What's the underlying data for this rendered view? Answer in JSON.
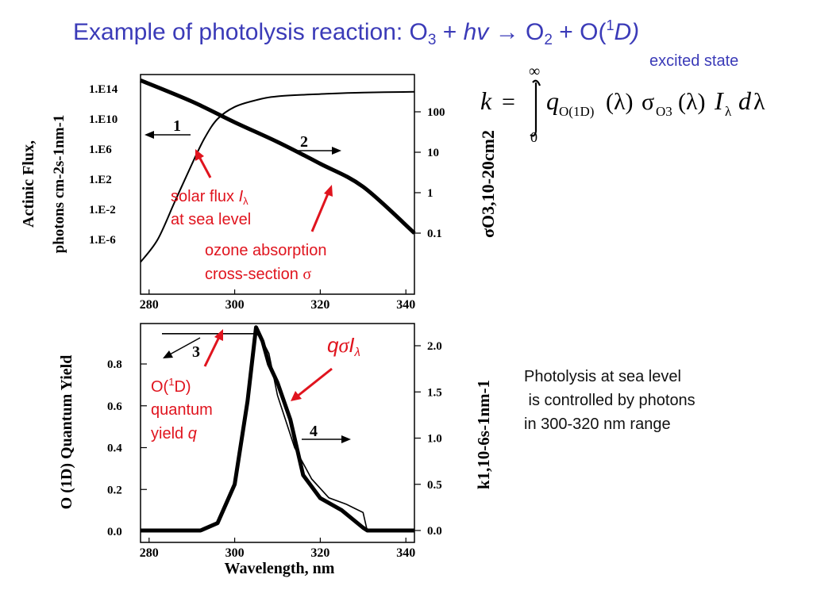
{
  "title": {
    "prefix": "Example of photolysis reaction: O",
    "sub1": "3",
    "plus1": " + ",
    "hv": "hv",
    "arrow": " → O",
    "sub2": "2",
    "plus2": " + O(",
    "sup": "1",
    "D": "D",
    "close": ")"
  },
  "excited_state": "excited state",
  "formula": {
    "k": "k",
    "eq": "=",
    "upper": "∞",
    "lower": "0",
    "q": "q",
    "q_sub": "O(1D)",
    "lam1": "(λ)",
    "sigma": "σ",
    "sigma_sub": "O3",
    "lam2": "(λ)",
    "I": "I",
    "I_sub": "λ",
    "d": "d",
    "lam3": "λ"
  },
  "conclusion": "Photolysis at sea level\n is controlled by photons\nin 300-320 nm range",
  "colors": {
    "title": "#3b3bb8",
    "annotation": "#e0141e"
  },
  "chart_data": [
    {
      "type": "line",
      "xlim": [
        278,
        342
      ],
      "x_ticks": [
        "280",
        "300",
        "320",
        "340"
      ],
      "left_axis": {
        "label_line1": "Actinic Flux,",
        "label_line2": "photons cm-2s-1nm-1",
        "scale": "log",
        "ticks": [
          "1.E14",
          "1.E10",
          "1.E6",
          "1.E2",
          "1.E-2",
          "1.E-6"
        ]
      },
      "right_axis": {
        "label": "σO3,10-20cm2",
        "scale": "log",
        "ticks": [
          "100",
          "10",
          "1",
          "0.1"
        ]
      },
      "series": [
        {
          "axis": "left",
          "x": [
            278,
            282,
            286,
            290,
            293,
            296,
            300,
            305,
            310,
            320,
            330,
            342
          ],
          "y": [
            -9,
            -6,
            -1,
            4,
            7.5,
            10,
            11.6,
            12.5,
            13,
            13.3,
            13.5,
            13.6
          ]
        },
        {
          "axis": "right",
          "x": [
            278,
            290,
            300,
            310,
            320,
            330,
            342
          ],
          "y": [
            600,
            180,
            55,
            18,
            5.2,
            1.4,
            0.1
          ]
        }
      ],
      "markers": [
        {
          "label": "1",
          "direction": "left"
        },
        {
          "label": "2",
          "direction": "right"
        }
      ],
      "annotations": {
        "solar_flux": "solar flux ",
        "solar_flux_I": "I",
        "solar_flux_sub": "λ",
        "solar_flux_2": "at sea level",
        "ozone_1": "ozone absorption",
        "ozone_2": "cross-section ",
        "ozone_sigma": "σ"
      }
    },
    {
      "type": "line",
      "xlim": [
        278,
        342
      ],
      "x_ticks": [
        "280",
        "300",
        "320",
        "340"
      ],
      "xlabel": "Wavelength, nm",
      "left_axis": {
        "label": "O (1D) Quantum Yield",
        "ylim": [
          0,
          0.98
        ],
        "ticks": [
          "0.0",
          "0.2",
          "0.4",
          "0.6",
          "0.8"
        ]
      },
      "right_axis": {
        "label": "k1,10-6s-1nm-1",
        "ylim": [
          0,
          2.4
        ],
        "ticks": [
          "0.0",
          "0.5",
          "1.0",
          "1.5",
          "2.0"
        ]
      },
      "series": [
        {
          "axis": "left",
          "x": [
            283,
            305,
            306,
            308,
            310,
            314,
            318,
            322,
            326,
            328,
            330,
            331,
            342
          ],
          "y": [
            0.945,
            0.945,
            0.93,
            0.85,
            0.65,
            0.4,
            0.25,
            0.16,
            0.13,
            0.11,
            0.09,
            0.0,
            0.0
          ]
        },
        {
          "axis": "right",
          "x": [
            278,
            292,
            296,
            300,
            303,
            305,
            306.5,
            308,
            310,
            313,
            316,
            320,
            325,
            330,
            331,
            342
          ],
          "y": [
            0,
            0,
            0.08,
            0.5,
            1.4,
            2.2,
            2.05,
            1.8,
            1.6,
            1.2,
            0.6,
            0.35,
            0.22,
            0.03,
            0,
            0
          ]
        }
      ],
      "markers": [
        {
          "label": "3",
          "direction": "left"
        },
        {
          "label": "4",
          "direction": "right"
        }
      ],
      "annotations": {
        "qy_1": "O(",
        "qy_sup": "1",
        "qy_2": "D)",
        "qy_3": "quantum",
        "qy_4": "yield ",
        "qy_q": "q",
        "qsi_q": "q",
        "qsi_sigma": "σ",
        "qsi_I": "I",
        "qsi_sub": "λ"
      }
    }
  ]
}
